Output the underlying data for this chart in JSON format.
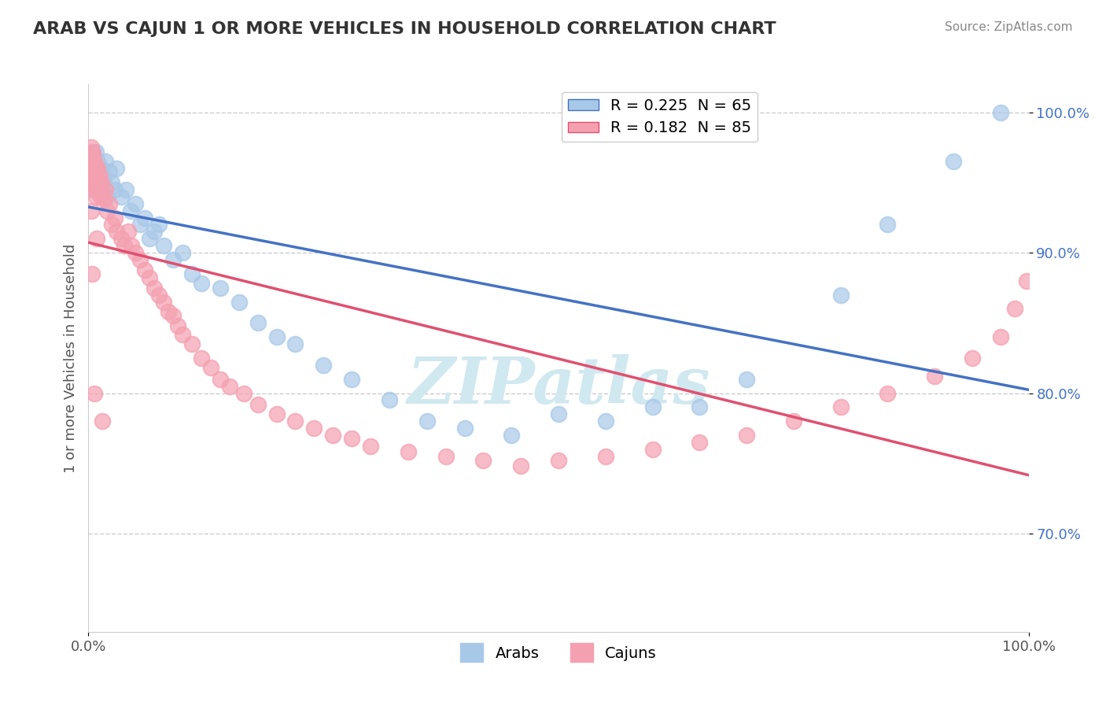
{
  "title": "ARAB VS CAJUN 1 OR MORE VEHICLES IN HOUSEHOLD CORRELATION CHART",
  "source": "Source: ZipAtlas.com",
  "xlabel": "",
  "ylabel": "1 or more Vehicles in Household",
  "xlim": [
    0,
    1
  ],
  "ylim": [
    0.63,
    1.02
  ],
  "yticks": [
    0.7,
    0.8,
    0.9,
    1.0
  ],
  "ytick_labels": [
    "70.0%",
    "80.0%",
    "90.0%",
    "100.0%"
  ],
  "xticks": [
    0.0,
    1.0
  ],
  "xtick_labels": [
    "0.0%",
    "100.0%"
  ],
  "arab_R": 0.225,
  "arab_N": 65,
  "cajun_R": 0.182,
  "cajun_N": 85,
  "arab_color": "#a8c8e8",
  "cajun_color": "#f4a0b0",
  "arab_line_color": "#4472c4",
  "cajun_line_color": "#e05070",
  "legend_arab_color": "#a8c8e8",
  "legend_cajun_color": "#f4a0b0",
  "background_color": "#ffffff",
  "watermark_text": "ZIPatlas",
  "watermark_color": "#d0e8f0",
  "arab_x": [
    0.002,
    0.002,
    0.003,
    0.003,
    0.003,
    0.004,
    0.004,
    0.004,
    0.005,
    0.005,
    0.005,
    0.006,
    0.006,
    0.007,
    0.007,
    0.008,
    0.008,
    0.009,
    0.009,
    0.01,
    0.011,
    0.012,
    0.013,
    0.015,
    0.016,
    0.018,
    0.02,
    0.022,
    0.025,
    0.028,
    0.03,
    0.035,
    0.04,
    0.045,
    0.05,
    0.055,
    0.06,
    0.065,
    0.07,
    0.075,
    0.08,
    0.09,
    0.1,
    0.11,
    0.12,
    0.14,
    0.16,
    0.18,
    0.2,
    0.22,
    0.25,
    0.28,
    0.32,
    0.36,
    0.4,
    0.45,
    0.5,
    0.55,
    0.6,
    0.65,
    0.7,
    0.8,
    0.85,
    0.92,
    0.97
  ],
  "arab_y": [
    0.955,
    0.96,
    0.965,
    0.958,
    0.962,
    0.97,
    0.952,
    0.958,
    0.972,
    0.96,
    0.945,
    0.968,
    0.955,
    0.962,
    0.95,
    0.972,
    0.958,
    0.96,
    0.948,
    0.965,
    0.958,
    0.945,
    0.96,
    0.955,
    0.952,
    0.965,
    0.94,
    0.958,
    0.95,
    0.945,
    0.96,
    0.94,
    0.945,
    0.93,
    0.935,
    0.92,
    0.925,
    0.91,
    0.915,
    0.92,
    0.905,
    0.895,
    0.9,
    0.885,
    0.878,
    0.875,
    0.865,
    0.85,
    0.84,
    0.835,
    0.82,
    0.81,
    0.795,
    0.78,
    0.775,
    0.77,
    0.785,
    0.78,
    0.79,
    0.79,
    0.81,
    0.87,
    0.92,
    0.965,
    1.0
  ],
  "cajun_x": [
    0.001,
    0.002,
    0.002,
    0.003,
    0.003,
    0.003,
    0.004,
    0.004,
    0.004,
    0.005,
    0.005,
    0.005,
    0.006,
    0.006,
    0.006,
    0.007,
    0.007,
    0.008,
    0.008,
    0.009,
    0.009,
    0.01,
    0.01,
    0.011,
    0.012,
    0.013,
    0.014,
    0.015,
    0.016,
    0.018,
    0.02,
    0.022,
    0.025,
    0.028,
    0.03,
    0.035,
    0.038,
    0.042,
    0.046,
    0.05,
    0.055,
    0.06,
    0.065,
    0.07,
    0.075,
    0.08,
    0.085,
    0.09,
    0.095,
    0.1,
    0.11,
    0.12,
    0.13,
    0.14,
    0.15,
    0.165,
    0.18,
    0.2,
    0.22,
    0.24,
    0.26,
    0.28,
    0.3,
    0.34,
    0.38,
    0.42,
    0.46,
    0.5,
    0.55,
    0.6,
    0.65,
    0.7,
    0.75,
    0.8,
    0.85,
    0.9,
    0.94,
    0.97,
    0.985,
    0.998,
    0.003,
    0.004,
    0.006,
    0.009,
    0.015
  ],
  "cajun_y": [
    0.96,
    0.97,
    0.952,
    0.968,
    0.958,
    0.975,
    0.965,
    0.955,
    0.972,
    0.96,
    0.948,
    0.97,
    0.955,
    0.965,
    0.945,
    0.958,
    0.95,
    0.962,
    0.94,
    0.955,
    0.945,
    0.96,
    0.95,
    0.945,
    0.955,
    0.94,
    0.95,
    0.942,
    0.938,
    0.945,
    0.93,
    0.935,
    0.92,
    0.925,
    0.915,
    0.91,
    0.905,
    0.915,
    0.905,
    0.9,
    0.895,
    0.888,
    0.882,
    0.875,
    0.87,
    0.865,
    0.858,
    0.855,
    0.848,
    0.842,
    0.835,
    0.825,
    0.818,
    0.81,
    0.805,
    0.8,
    0.792,
    0.785,
    0.78,
    0.775,
    0.77,
    0.768,
    0.762,
    0.758,
    0.755,
    0.752,
    0.748,
    0.752,
    0.755,
    0.76,
    0.765,
    0.77,
    0.78,
    0.79,
    0.8,
    0.812,
    0.825,
    0.84,
    0.86,
    0.88,
    0.93,
    0.885,
    0.8,
    0.91,
    0.78
  ]
}
